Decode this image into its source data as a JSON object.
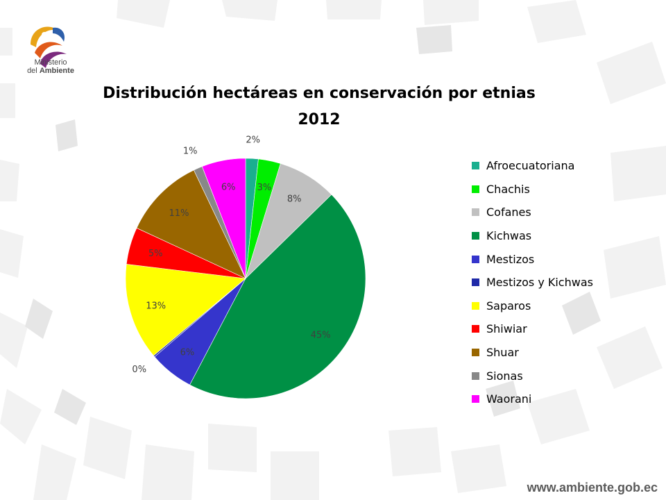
{
  "brand": {
    "logo_line1": "Ministerio",
    "logo_line2_prefix": "del",
    "logo_line2_bold": "Ambiente",
    "url": "www.ambiente.gob.ec"
  },
  "colors": {
    "afro": "#1aaf8f",
    "chachis": "#00ee00",
    "cofanes": "#c0c0c0",
    "kichwas": "#009045",
    "mestizos": "#3535cc",
    "mestizos_kichwas": "#1f2aa8",
    "saparos": "#ffff00",
    "shiwiar": "#ff0000",
    "shuar": "#996600",
    "sionas": "#888888",
    "waorani": "#ff00ff"
  },
  "chart_data": {
    "type": "pie",
    "title": "Distribución hectáreas en conservación por etnias",
    "subtitle": "2012",
    "legend_position": "right",
    "labels": [
      "Afroecuatoriana",
      "Chachis",
      "Cofanes",
      "Kichwas",
      "Mestizos",
      "Mestizos y Kichwas",
      "Saparos",
      "Shiwiar",
      "Shuar",
      "Sionas",
      "Waorani"
    ],
    "values": [
      1.7,
      3.0,
      8.0,
      45.0,
      6.0,
      0.2,
      13.0,
      5.0,
      11.0,
      1.2,
      5.9
    ],
    "data_labels": [
      "2%",
      "3%",
      "8%",
      "45%",
      "6%",
      "0%",
      "13%",
      "5%",
      "11%",
      "1%",
      "6%"
    ],
    "colors": [
      "#1aaf8f",
      "#00ee00",
      "#c0c0c0",
      "#009045",
      "#3535cc",
      "#1f2aa8",
      "#ffff00",
      "#ff0000",
      "#996600",
      "#888888",
      "#ff00ff"
    ]
  }
}
